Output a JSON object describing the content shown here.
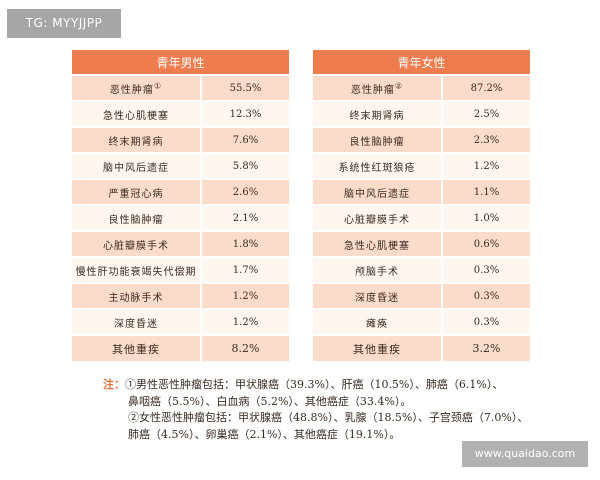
{
  "badge": "TG: MYYJJPP",
  "male": {
    "title": "青年男性",
    "rows": [
      {
        "name": "恶性肿瘤",
        "sup": "①",
        "pct": "55.5%"
      },
      {
        "name": "急性心肌梗塞",
        "pct": "12.3%"
      },
      {
        "name": "终末期肾病",
        "pct": "7.6%"
      },
      {
        "name": "脑中风后遗症",
        "pct": "5.8%"
      },
      {
        "name": "严重冠心病",
        "pct": "2.6%"
      },
      {
        "name": "良性脑肿瘤",
        "pct": "2.1%"
      },
      {
        "name": "心脏瓣膜手术",
        "pct": "1.8%"
      },
      {
        "name": "慢性肝功能衰竭失代偿期",
        "pct": "1.7%"
      },
      {
        "name": "主动脉手术",
        "pct": "1.2%"
      },
      {
        "name": "深度昏迷",
        "pct": "1.2%"
      },
      {
        "name": "其他重疾",
        "pct": "8.2%"
      }
    ]
  },
  "female": {
    "title": "青年女性",
    "rows": [
      {
        "name": "恶性肿瘤",
        "sup": "②",
        "pct": "87.2%"
      },
      {
        "name": "终末期肾病",
        "pct": "2.5%"
      },
      {
        "name": "良性脑肿瘤",
        "pct": "2.3%"
      },
      {
        "name": "系统性红斑狼疮",
        "pct": "1.2%"
      },
      {
        "name": "脑中风后遗症",
        "pct": "1.1%"
      },
      {
        "name": "心脏瓣膜手术",
        "pct": "1.0%"
      },
      {
        "name": "急性心肌梗塞",
        "pct": "0.6%"
      },
      {
        "name": "颅脑手术",
        "pct": "0.3%"
      },
      {
        "name": "深度昏迷",
        "pct": "0.3%"
      },
      {
        "name": "瘫痪",
        "pct": "0.3%"
      },
      {
        "name": "其他重疾",
        "pct": "3.2%"
      }
    ]
  },
  "notes": {
    "label": "注：",
    "lines": [
      "①男性恶性肿瘤包括：甲状腺癌（39.3%）、肝癌（10.5%）、肺癌（6.1%）、",
      "鼻咽癌（5.5%）、白血病（5.2%）、其他癌症（33.4%）。",
      "②女性恶性肿瘤包括：甲状腺癌（48.8%）、乳腺（18.5%）、子宫颈癌（7.0%）、",
      "肺癌（4.5%）、卵巢癌（2.1%）、其他癌症（19.1%）。"
    ]
  },
  "watermark": "www.quaidao.com"
}
